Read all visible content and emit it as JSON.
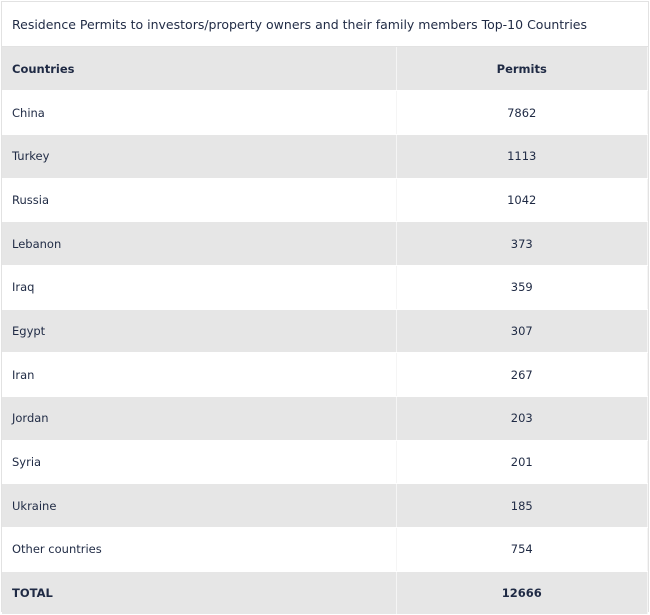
{
  "title": "Residence Permits to investors/property owners and their family members Top-10 Countries",
  "headers": {
    "country": "Countries",
    "permits": "Permits"
  },
  "rows": [
    {
      "country": "China",
      "permits": "7862"
    },
    {
      "country": "Turkey",
      "permits": "1113"
    },
    {
      "country": "Russia",
      "permits": "1042"
    },
    {
      "country": "Lebanon",
      "permits": "373"
    },
    {
      "country": "Iraq",
      "permits": "359"
    },
    {
      "country": "Egypt",
      "permits": "307"
    },
    {
      "country": "Iran",
      "permits": "267"
    },
    {
      "country": "Jordan",
      "permits": "203"
    },
    {
      "country": "Syria",
      "permits": "201"
    },
    {
      "country": "Ukraine",
      "permits": "185"
    },
    {
      "country": "Other countries",
      "permits": "754"
    }
  ],
  "total": {
    "label": "TOTAL",
    "value": "12666"
  },
  "colors": {
    "text": "#1f2a44",
    "stripe": "#e6e6e6",
    "background": "#ffffff"
  }
}
